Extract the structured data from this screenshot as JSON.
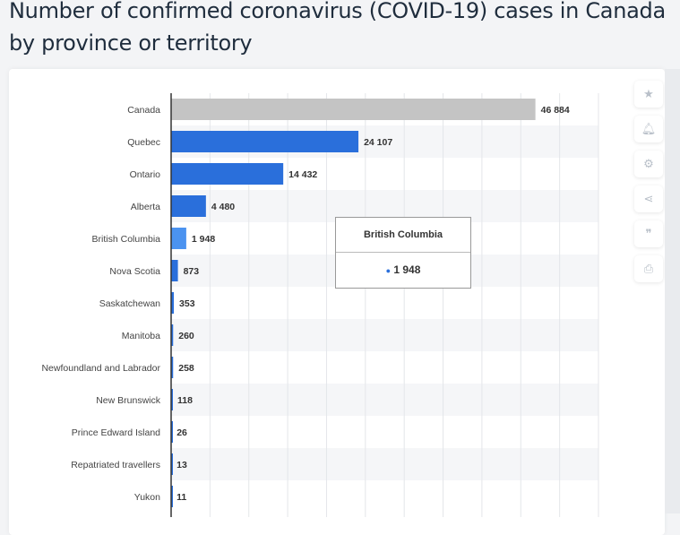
{
  "chart_data": {
    "type": "bar",
    "orientation": "horizontal",
    "title": "Number of confirmed coronavirus (COVID-19) cases in Canada by province or territory",
    "categories": [
      "Canada",
      "Quebec",
      "Ontario",
      "Alberta",
      "British Columbia",
      "Nova Scotia",
      "Saskatchewan",
      "Manitoba",
      "Newfoundland and Labrador",
      "New Brunswick",
      "Prince Edward Island",
      "Repatriated travellers",
      "Yukon"
    ],
    "values": [
      46884,
      24107,
      14432,
      4480,
      1948,
      873,
      353,
      260,
      258,
      118,
      26,
      13,
      11
    ],
    "labels": [
      "46 884",
      "24 107",
      "14 432",
      "4 480",
      "1 948",
      "873",
      "353",
      "260",
      "258",
      "118",
      "26",
      "13",
      "11"
    ],
    "xlim": [
      0,
      55000
    ],
    "grid": true,
    "colors": {
      "total": "#c4c4c4",
      "series": "#2a6fdb",
      "highlight": "#4b93f0"
    }
  },
  "tooltip": {
    "title": "British Columbia",
    "value": "1 948"
  },
  "side_icons": [
    "star-icon",
    "bell-icon",
    "gear-icon",
    "share-icon",
    "quote-icon",
    "print-icon"
  ]
}
